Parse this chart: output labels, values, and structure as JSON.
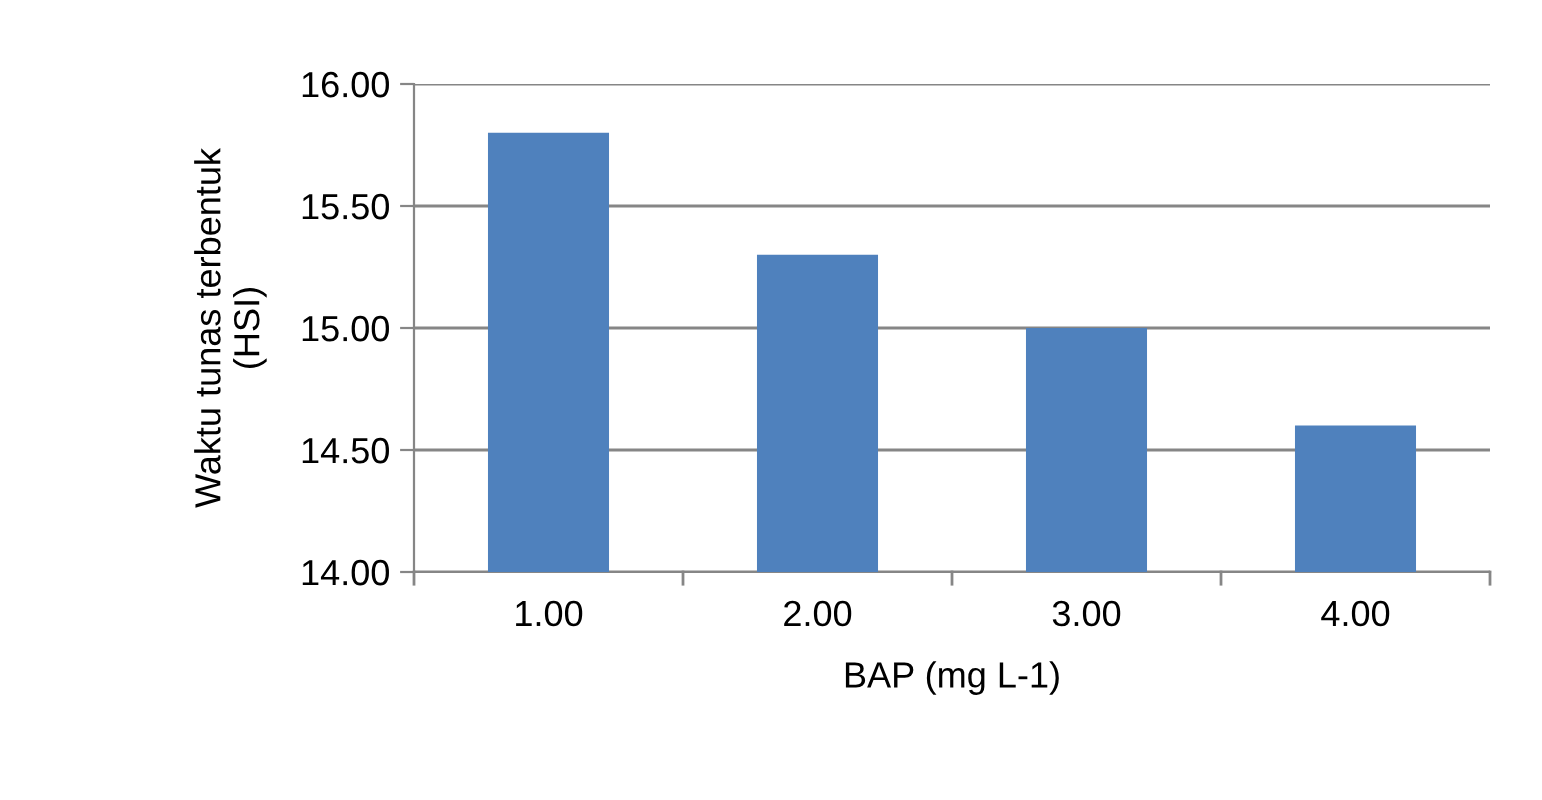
{
  "chart_data": {
    "type": "bar",
    "xlabel": "BAP (mg L-1)",
    "ylabel": "Waktu tunas terbentuk\n(HSI)",
    "categories": [
      "1.00",
      "2.00",
      "3.00",
      "4.00"
    ],
    "values": [
      15.8,
      15.3,
      15.0,
      14.6
    ],
    "color": "#4f81bd",
    "ylim": [
      14,
      16
    ],
    "yticks": [
      {
        "value": 14,
        "label": "14.00"
      },
      {
        "value": 14.5,
        "label": "14.50"
      },
      {
        "value": 15,
        "label": "15.00"
      },
      {
        "value": 15.5,
        "label": "15.50"
      },
      {
        "value": 16,
        "label": "16.00"
      }
    ],
    "grid": "y",
    "legend": false
  }
}
